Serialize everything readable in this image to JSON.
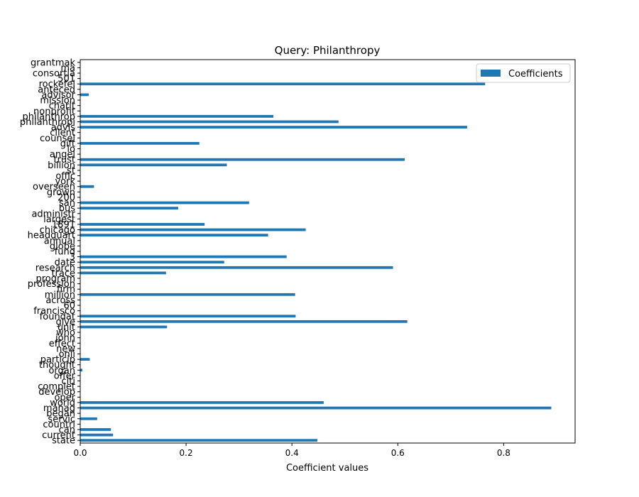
{
  "chart_data": {
    "type": "bar",
    "orientation": "horizontal",
    "title": "Query: Philanthropy",
    "xlabel": "Coefficient values",
    "ylabel": "",
    "xlim": [
      0,
      0.935
    ],
    "xticks": [
      0,
      0.2,
      0.4,
      0.6,
      0.8
    ],
    "xtick_labels": [
      "0.0",
      "0.2",
      "0.4",
      "0.6",
      "0.8"
    ],
    "grid": false,
    "legend": {
      "placement": "top-right",
      "entries": [
        "Coefficients"
      ]
    },
    "bar_color": "#1f77b4",
    "categories": [
      "state",
      "current",
      "can",
      "countri",
      "servic",
      "began",
      "manag",
      "world",
      "oper",
      "develop",
      "complet",
      "citi",
      "offer",
      "organ",
      "thought",
      "particip",
      "onli",
      "new",
      "effect",
      "john",
      "who",
      "unit",
      "give",
      "foundat",
      "francisco",
      "60",
      "across",
      "million",
      "firm",
      "profession",
      "program",
      "trace",
      "research",
      "date",
      "3",
      "fund",
      "globe",
      "annual",
      "headquart",
      "chicago",
      "1891",
      "largest",
      "administr",
      "bus",
      "san",
      "200",
      "grown",
      "overseen",
      "york",
      "offic",
      "st",
      "billion",
      "trust",
      "angel",
      "lo",
      "gift",
      "counsel",
      "client",
      "advis",
      "philanthropi",
      "philanthrop",
      "nonprofit",
      "charit",
      "mission",
      "advisor",
      "anteced",
      "rockefel",
      "501",
      "consortia",
      "ma",
      "grantmak"
    ],
    "values": [
      0.448,
      0.062,
      0.058,
      0.0,
      0.032,
      0.0,
      0.89,
      0.46,
      0.0,
      0.0,
      0.0,
      0.0,
      0.0,
      0.004,
      0.0,
      0.018,
      0.0,
      0.0,
      0.0,
      0.0,
      0.0,
      0.164,
      0.618,
      0.407,
      0.0,
      0.0,
      0.0,
      0.406,
      0.0,
      0.0,
      0.0,
      0.162,
      0.591,
      0.272,
      0.39,
      0.0,
      0.0,
      0.0,
      0.355,
      0.426,
      0.235,
      0.0,
      0.0,
      0.185,
      0.319,
      0.0,
      0.0,
      0.026,
      0.0,
      0.0,
      0.0,
      0.277,
      0.613,
      0.0,
      0.0,
      0.225,
      0.0,
      0.0,
      0.731,
      0.488,
      0.365,
      0.0,
      0.0,
      0.0,
      0.016,
      0.0,
      0.765,
      0.0,
      0.0,
      0.0,
      0.0
    ]
  }
}
